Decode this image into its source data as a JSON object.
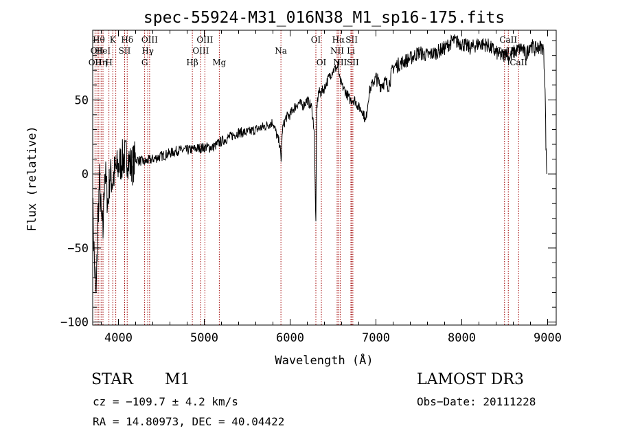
{
  "chart_data": {
    "type": "line",
    "title": "spec-55924-M31_016N38_M1_sp16-175.fits",
    "xlabel": "Wavelength (Å)",
    "ylabel": "Flux (relative)",
    "xlim": [
      3700,
      9100
    ],
    "ylim": [
      -102,
      97
    ],
    "xticks": [
      4000,
      5000,
      6000,
      7000,
      8000,
      9000
    ],
    "yticks": [
      -100,
      -50,
      0,
      50
    ],
    "grid": false,
    "series": [
      {
        "name": "flux",
        "x": [
          3700,
          3720,
          3740,
          3760,
          3780,
          3800,
          3820,
          3840,
          3860,
          3880,
          3900,
          3930,
          3960,
          4000,
          4050,
          4100,
          4150,
          4200,
          4300,
          4400,
          4500,
          4600,
          4700,
          4800,
          4900,
          5000,
          5100,
          5200,
          5300,
          5400,
          5500,
          5600,
          5700,
          5800,
          5850,
          5880,
          5895,
          5910,
          5950,
          6000,
          6050,
          6100,
          6150,
          6200,
          6250,
          6280,
          6300,
          6310,
          6330,
          6360,
          6400,
          6450,
          6500,
          6550,
          6562,
          6575,
          6600,
          6650,
          6700,
          6750,
          6800,
          6850,
          6880,
          6920,
          6950,
          7000,
          7050,
          7100,
          7150,
          7200,
          7300,
          7400,
          7500,
          7600,
          7700,
          7800,
          7900,
          8000,
          8100,
          8200,
          8300,
          8400,
          8450,
          8498,
          8520,
          8542,
          8600,
          8662,
          8700,
          8750,
          8800,
          8850,
          8900,
          8950,
          8970,
          8980,
          8990
        ],
        "values": [
          -20,
          -60,
          -85,
          -30,
          -5,
          -30,
          -40,
          5,
          -10,
          -20,
          0,
          -5,
          2,
          5,
          10,
          12,
          5,
          10,
          8,
          10,
          12,
          14,
          16,
          16,
          17,
          18,
          18,
          22,
          25,
          28,
          28,
          30,
          32,
          35,
          25,
          20,
          8,
          30,
          38,
          40,
          45,
          48,
          46,
          50,
          45,
          30,
          -35,
          45,
          55,
          55,
          58,
          65,
          70,
          72,
          74,
          64,
          60,
          55,
          50,
          50,
          45,
          42,
          35,
          55,
          60,
          65,
          60,
          62,
          60,
          72,
          75,
          78,
          82,
          80,
          82,
          85,
          90,
          88,
          85,
          88,
          87,
          82,
          80,
          80,
          84,
          78,
          82,
          84,
          85,
          80,
          88,
          84,
          86,
          85,
          60,
          20,
          0
        ]
      }
    ],
    "lines": [
      {
        "wave": 3727,
        "top": "",
        "mid": "",
        "low": "OII"
      },
      {
        "wave": 3750,
        "top": "",
        "mid": "OII",
        "low": ""
      },
      {
        "wave": 3771,
        "top": "Hθ",
        "mid": "",
        "low": ""
      },
      {
        "wave": 3798,
        "top": "",
        "mid": "",
        "low": "Hη"
      },
      {
        "wave": 3820,
        "top": "",
        "mid": "HeI",
        "low": ""
      },
      {
        "wave": 3889,
        "top": "",
        "mid": "",
        "low": "H"
      },
      {
        "wave": 3934,
        "top": "K",
        "mid": "",
        "low": ""
      },
      {
        "wave": 3969,
        "top": "",
        "mid": "",
        "low": ""
      },
      {
        "wave": 4072,
        "top": "",
        "mid": "SII",
        "low": ""
      },
      {
        "wave": 4102,
        "top": "Hδ",
        "mid": "",
        "low": ""
      },
      {
        "wave": 4305,
        "top": "",
        "mid": "",
        "low": "G"
      },
      {
        "wave": 4341,
        "top": "",
        "mid": "Hγ",
        "low": ""
      },
      {
        "wave": 4363,
        "top": "OIII",
        "mid": "",
        "low": ""
      },
      {
        "wave": 4861,
        "top": "",
        "mid": "",
        "low": "Hβ"
      },
      {
        "wave": 4959,
        "top": "",
        "mid": "OIII",
        "low": ""
      },
      {
        "wave": 5007,
        "top": "OIII",
        "mid": "",
        "low": ""
      },
      {
        "wave": 5175,
        "top": "",
        "mid": "",
        "low": "Mg"
      },
      {
        "wave": 5893,
        "top": "",
        "mid": "Na",
        "low": ""
      },
      {
        "wave": 6300,
        "top": "OI",
        "mid": "",
        "low": ""
      },
      {
        "wave": 6364,
        "top": "",
        "mid": "",
        "low": "OI"
      },
      {
        "wave": 6548,
        "top": "",
        "mid": "NII",
        "low": ""
      },
      {
        "wave": 6563,
        "top": "Hα",
        "mid": "",
        "low": ""
      },
      {
        "wave": 6583,
        "top": "",
        "mid": "",
        "low": "NII"
      },
      {
        "wave": 6708,
        "top": "",
        "mid": "Li",
        "low": ""
      },
      {
        "wave": 6717,
        "top": "SII",
        "mid": "",
        "low": ""
      },
      {
        "wave": 6731,
        "top": "",
        "mid": "",
        "low": "SII"
      },
      {
        "wave": 8498,
        "top": "",
        "mid": "CaII",
        "low": ""
      },
      {
        "wave": 8542,
        "top": "CaII",
        "mid": "",
        "low": ""
      },
      {
        "wave": 8662,
        "top": "",
        "mid": "",
        "low": "CaII"
      }
    ]
  },
  "info": {
    "class_label": "STAR",
    "subclass_label": "M1",
    "survey_label": "LAMOST DR3",
    "cz_text": "cz = −109.7 ± 4.2 km/s",
    "obs_date_text": "Obs−Date: 20111228",
    "coords_text": "RA =  14.80973, DEC =  40.04422"
  }
}
